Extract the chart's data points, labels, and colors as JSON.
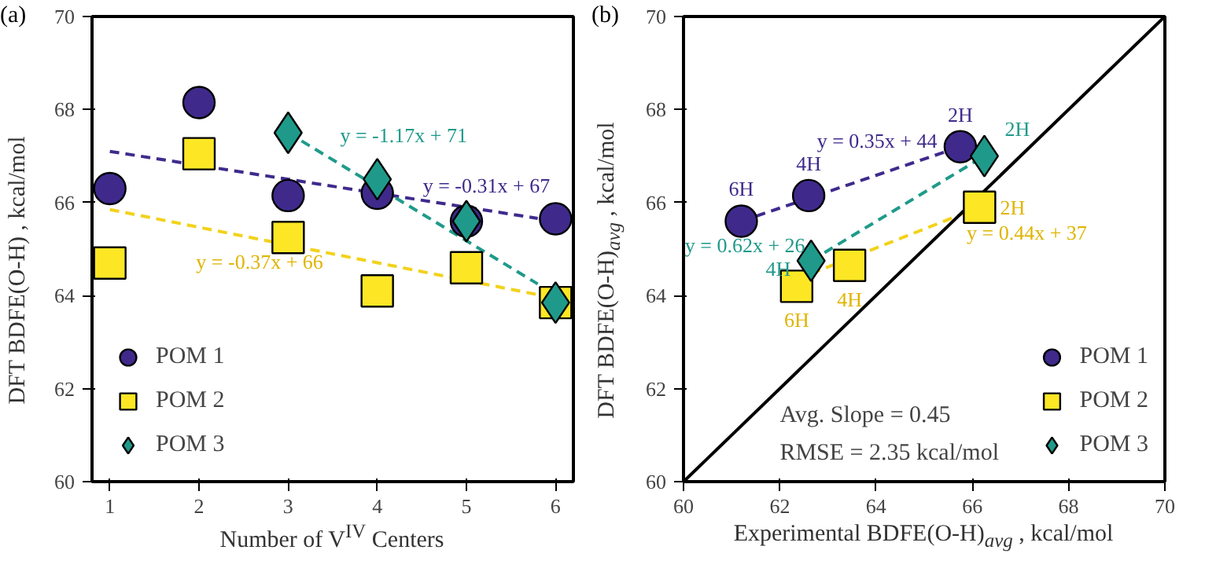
{
  "chart_data": [
    {
      "type": "scatter",
      "title": "(a)",
      "xlabel": "Number of V$^{IV}$ Centers",
      "ylabel": "DFT BDFE(O-H) , kcal/mol",
      "xlim": [
        0.8,
        6.2
      ],
      "xticks": [
        1,
        2,
        3,
        4,
        5,
        6
      ],
      "ylim": [
        60,
        70
      ],
      "yticks": [
        60,
        62,
        64,
        66,
        68,
        70
      ],
      "grid": false,
      "legend": "bottom left",
      "series": [
        {
          "name": "POM 1",
          "color": "#3f2a8c",
          "marker": "circle",
          "x": [
            1,
            2,
            3,
            4,
            5,
            6
          ],
          "values": [
            66.3,
            68.15,
            66.15,
            66.2,
            65.6,
            65.65
          ]
        },
        {
          "name": "POM 2",
          "color": "#fde725",
          "marker": "square",
          "x": [
            1,
            2,
            3,
            4,
            5,
            6
          ],
          "values": [
            64.7,
            67.05,
            65.25,
            64.1,
            64.6,
            63.85
          ]
        },
        {
          "name": "POM 3",
          "color": "#1f9a8a",
          "marker": "diamond",
          "x": [
            3,
            4,
            5,
            6
          ],
          "values": [
            67.5,
            66.5,
            65.6,
            63.85
          ]
        },
        {
          "type": "line",
          "name": "y = -0.31x + 67",
          "line_style": "dashed",
          "color": "#3f2a8c",
          "x": [
            1,
            5.8
          ],
          "values": [
            67.1,
            65.66
          ]
        },
        {
          "type": "line",
          "name": "y = -0.37x + 66",
          "line_style": "dashed",
          "color": "#f2d21b",
          "x": [
            1,
            5.8
          ],
          "values": [
            65.85,
            64.02
          ]
        },
        {
          "type": "line",
          "name": "y = -1.17x + 71",
          "line_style": "dashed",
          "color": "#1f9a8a",
          "x": [
            3,
            5.8
          ],
          "values": [
            67.5,
            64.25
          ]
        }
      ]
    },
    {
      "type": "scatter",
      "title": "(b)",
      "xlabel": "Experimental BDFE(O-H)$_{avg}$ , kcal/mol",
      "ylabel": "DFT BDFE(O-H)$_{avg}$ , kcal/mol",
      "xlim": [
        60,
        70
      ],
      "xticks": [
        60,
        62,
        64,
        66,
        68,
        70
      ],
      "ylim": [
        60,
        70
      ],
      "yticks": [
        60,
        62,
        64,
        66,
        68,
        70
      ],
      "grid": false,
      "legend": "bottom right",
      "series": [
        {
          "name": "POM 1",
          "color": "#3f2a8c",
          "marker": "circle",
          "x": [
            61.2,
            62.6,
            65.75
          ],
          "values": [
            65.6,
            66.15,
            67.2
          ]
        },
        {
          "name": "POM 2",
          "color": "#fde725",
          "marker": "square",
          "x": [
            62.35,
            63.45,
            66.15
          ],
          "values": [
            64.2,
            64.65,
            65.9
          ]
        },
        {
          "name": "POM 3",
          "color": "#1f9a8a",
          "marker": "diamond",
          "x": [
            62.65,
            66.25
          ],
          "values": [
            64.75,
            67.0
          ]
        },
        {
          "type": "line",
          "name": "y = 0.35x + 44",
          "line_style": "dashed",
          "color": "#3f2a8c",
          "x": [
            61.2,
            65.75
          ],
          "values": [
            65.6,
            67.2
          ]
        },
        {
          "type": "line",
          "name": "y = 0.44x + 37",
          "line_style": "dashed",
          "color": "#f2d21b",
          "x": [
            62.35,
            66.15
          ],
          "values": [
            64.35,
            65.9
          ]
        },
        {
          "type": "line",
          "name": "y = 0.62x + 26",
          "line_style": "dashed",
          "color": "#1f9a8a",
          "x": [
            62.65,
            66.25
          ],
          "values": [
            64.75,
            67.0
          ]
        },
        {
          "type": "line",
          "line_style": "solid",
          "color": "#000000",
          "x": [
            60,
            70
          ],
          "values": [
            60,
            70
          ]
        }
      ],
      "annotations": [
        {
          "text": "6H",
          "x": 61.2,
          "y": 65.6
        },
        {
          "text": "4H",
          "x": 62.6,
          "y": 66.15
        },
        {
          "text": "2H",
          "x": 65.75,
          "y": 67.2
        },
        {
          "text": "6H",
          "x": 62.35,
          "y": 64.2
        },
        {
          "text": "4H",
          "x": 63.45,
          "y": 64.65
        },
        {
          "text": "2H",
          "x": 66.15,
          "y": 65.9
        },
        {
          "text": "4H",
          "x": 62.65,
          "y": 64.75
        },
        {
          "text": "2H",
          "x": 66.25,
          "y": 67.0
        },
        "Avg. Slope = 0.45",
        "RMSE = 2.35 kcal/mol"
      ]
    }
  ]
}
